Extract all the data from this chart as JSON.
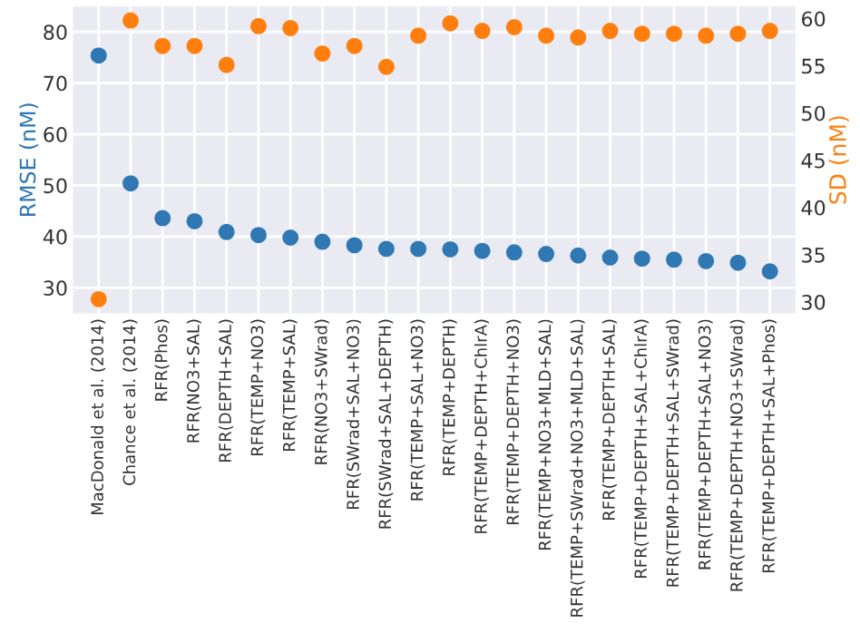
{
  "chart_data": {
    "type": "scatter",
    "ylabel": "RMSE (nM)",
    "y2label": "SD (nM)",
    "categories": [
      "MacDonald et al. (2014)",
      "Chance et al. (2014)",
      "RFR(Phos)",
      "RFR(NO3+SAL)",
      "RFR(DEPTH+SAL)",
      "RFR(TEMP+NO3)",
      "RFR(TEMP+SAL)",
      "RFR(NO3+SWrad)",
      "RFR(SWrad+SAL+NO3)",
      "RFR(SWrad+SAL+DEPTH)",
      "RFR(TEMP+SAL+NO3)",
      "RFR(TEMP+DEPTH)",
      "RFR(TEMP+DEPTH+ChlrA)",
      "RFR(TEMP+DEPTH+NO3)",
      "RFR(TEMP+NO3+MLD+SAL)",
      "RFR(TEMP+SWrad+NO3+MLD+SAL)",
      "RFR(TEMP+DEPTH+SAL)",
      "RFR(TEMP+DEPTH+SAL+ChlrA)",
      "RFR(TEMP+DEPTH+SAL+SWrad)",
      "RFR(TEMP+DEPTH+SAL+NO3)",
      "RFR(TEMP+DEPTH+NO3+SWrad)",
      "RFR(TEMP+DEPTH+SAL+Phos)"
    ],
    "series": [
      {
        "color": "#2f78b4",
        "values": [
          75.4,
          50.4,
          43.6,
          43.0,
          40.9,
          40.3,
          39.8,
          39.0,
          38.3,
          37.6,
          37.6,
          37.5,
          37.2,
          36.9,
          36.6,
          36.3,
          35.9,
          35.7,
          35.5,
          35.2,
          34.9,
          33.2
        ]
      },
      {
        "color": "#ff7f0e",
        "axis": "y2",
        "values": [
          30.3,
          59.8,
          57.1,
          57.1,
          55.1,
          59.2,
          59.0,
          56.3,
          57.1,
          54.9,
          58.2,
          59.5,
          58.7,
          59.1,
          58.2,
          58.0,
          58.7,
          58.4,
          58.4,
          58.2,
          58.4,
          58.7
        ]
      }
    ],
    "ylim": [
      25,
      85
    ],
    "yticks": [
      30,
      40,
      50,
      60,
      70,
      80
    ],
    "y2lim": [
      28.8,
      61.3
    ],
    "y2ticks": [
      30,
      35,
      40,
      45,
      50,
      55,
      60
    ],
    "grid": true,
    "marker": "circle",
    "legend": false
  }
}
